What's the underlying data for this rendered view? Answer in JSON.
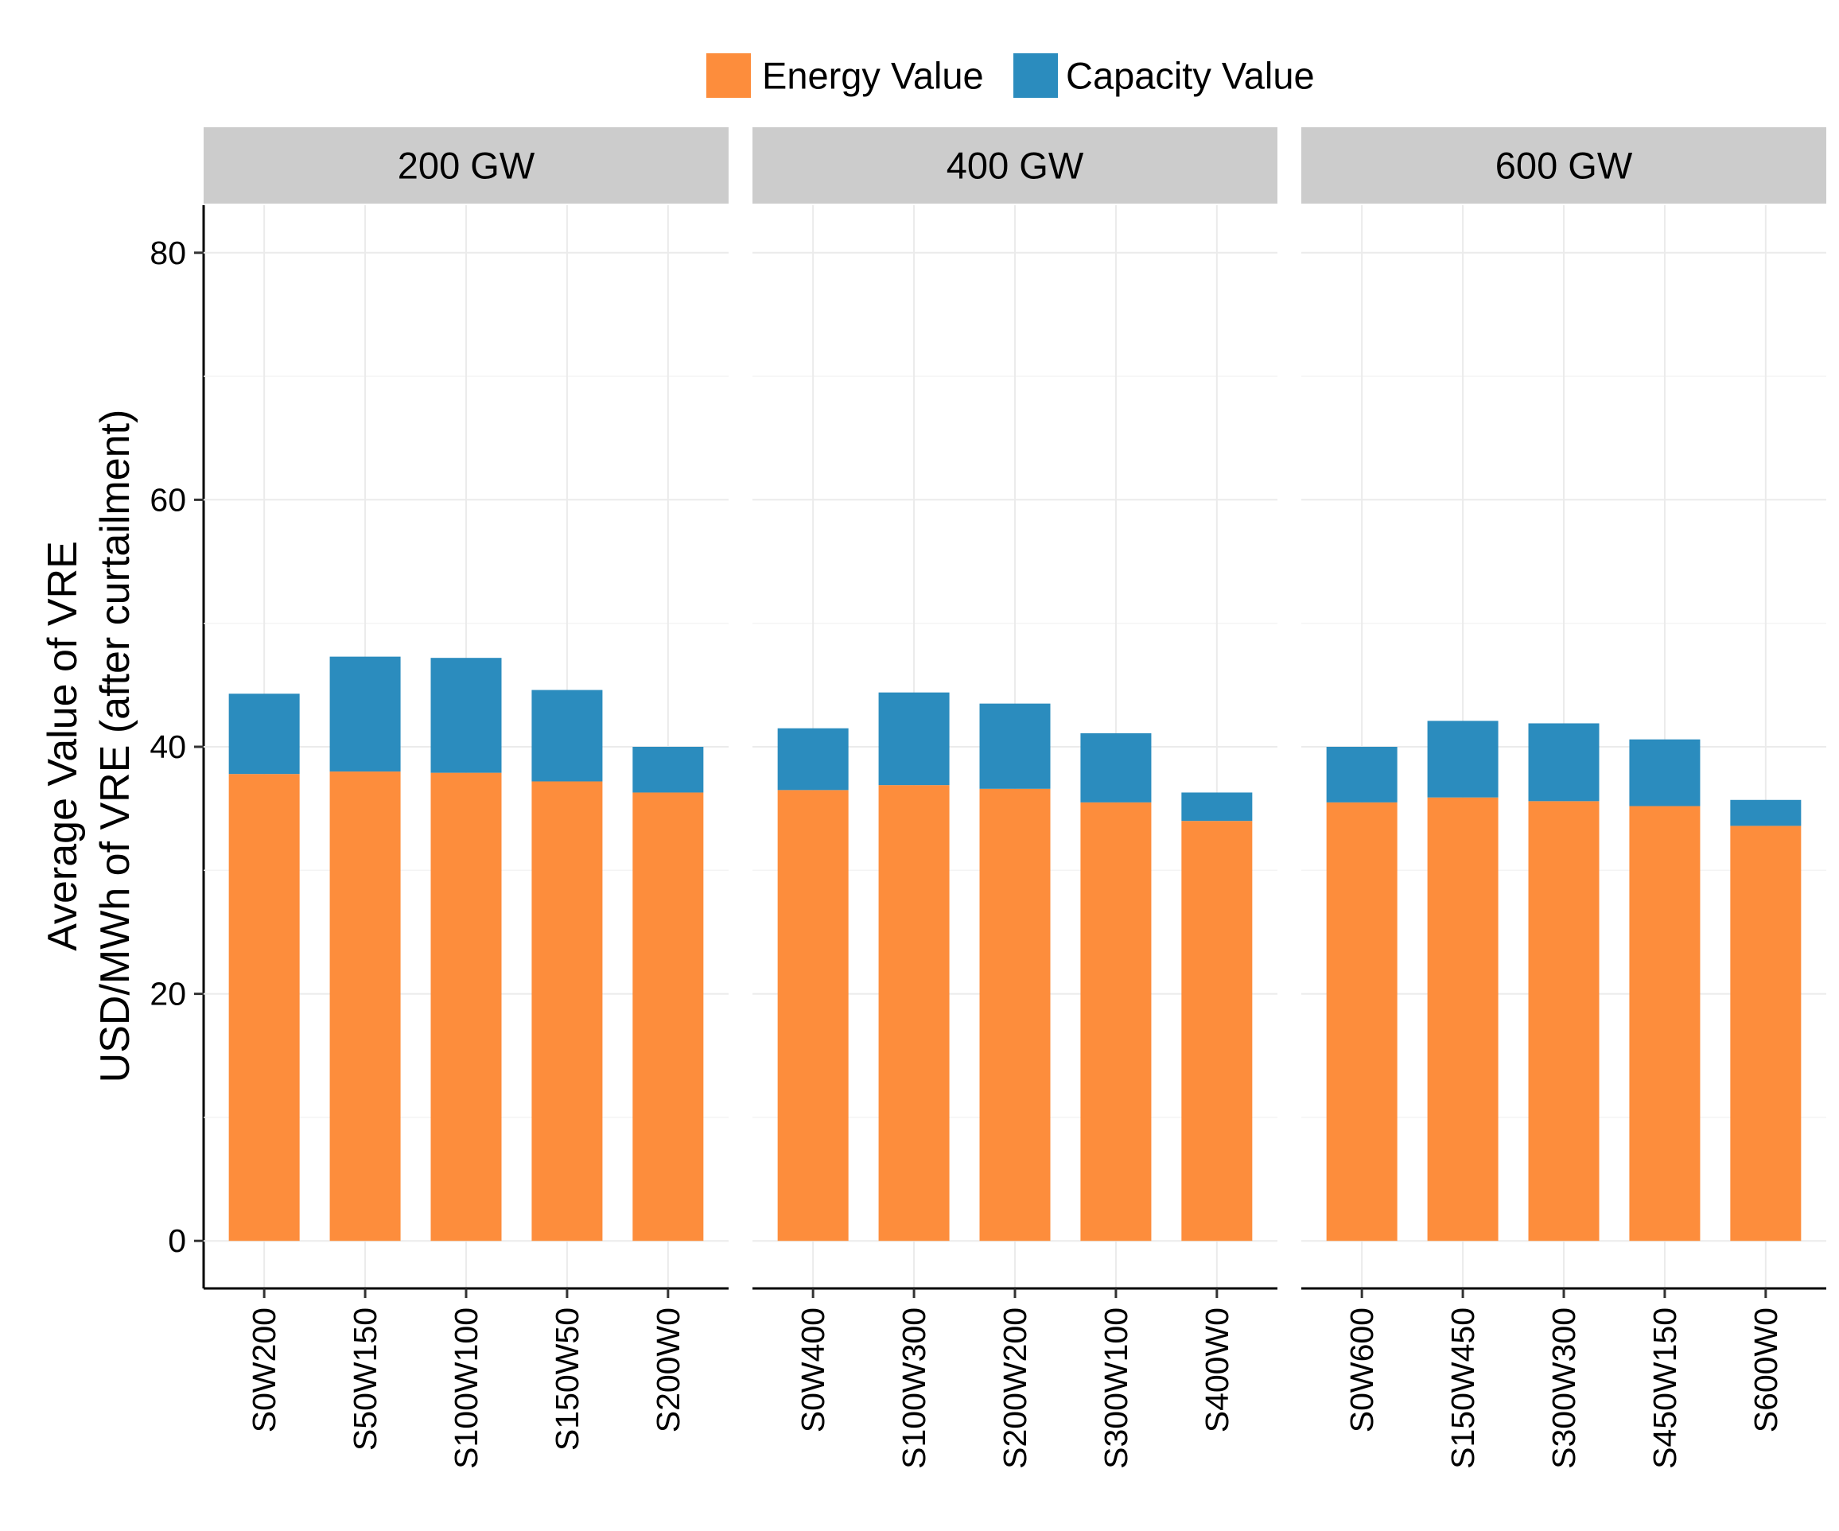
{
  "legend": {
    "items": [
      {
        "label": "Energy Value",
        "color": "#FD8D3C"
      },
      {
        "label": "Capacity Value",
        "color": "#2B8CBE"
      }
    ]
  },
  "chart_data": {
    "type": "bar",
    "stacked": true,
    "faceted": true,
    "ylabel_line1": "Average Value of VRE",
    "ylabel_line2": "USD/MWh of VRE (after curtailment)",
    "ylim": [
      0,
      80
    ],
    "yticks": [
      0,
      20,
      40,
      60,
      80
    ],
    "grid": true,
    "legend_position": "top",
    "series_names": [
      "Energy Value",
      "Capacity Value"
    ],
    "facets": [
      {
        "label": "200 GW",
        "categories": [
          "S0W200",
          "S50W150",
          "S100W100",
          "S150W50",
          "S200W0"
        ],
        "series": [
          {
            "name": "Energy Value",
            "values": [
              37.8,
              38.0,
              37.9,
              37.2,
              36.3
            ]
          },
          {
            "name": "Capacity Value",
            "values": [
              6.5,
              9.3,
              9.3,
              7.4,
              3.7
            ]
          }
        ]
      },
      {
        "label": "400 GW",
        "categories": [
          "S0W400",
          "S100W300",
          "S200W200",
          "S300W100",
          "S400W0"
        ],
        "series": [
          {
            "name": "Energy Value",
            "values": [
              36.5,
              36.9,
              36.6,
              35.5,
              34.0
            ]
          },
          {
            "name": "Capacity Value",
            "values": [
              5.0,
              7.5,
              6.9,
              5.6,
              2.3
            ]
          }
        ]
      },
      {
        "label": "600 GW",
        "categories": [
          "S0W600",
          "S150W450",
          "S300W300",
          "S450W150",
          "S600W0"
        ],
        "series": [
          {
            "name": "Energy Value",
            "values": [
              35.5,
              35.9,
              35.6,
              35.2,
              33.6
            ]
          },
          {
            "name": "Capacity Value",
            "values": [
              4.5,
              6.2,
              6.3,
              5.4,
              2.1
            ]
          }
        ]
      }
    ]
  }
}
